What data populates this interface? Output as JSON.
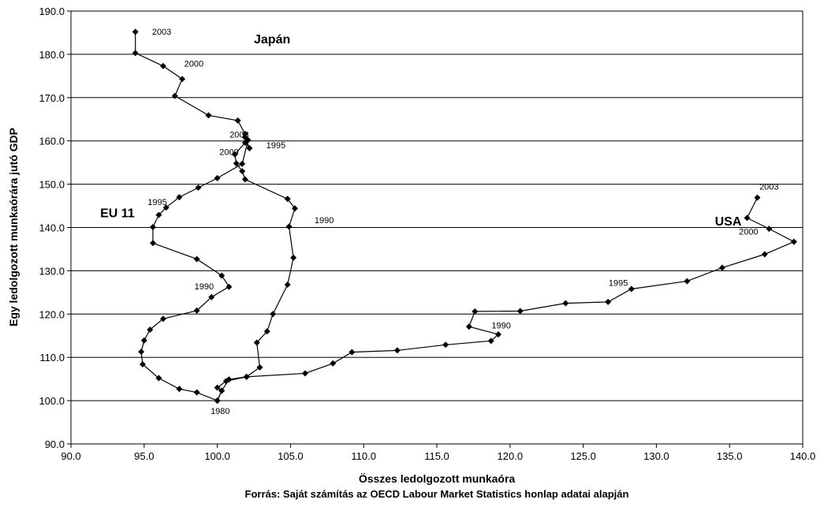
{
  "chart_data": {
    "type": "line",
    "xlabel": "Összes ledolgozott munkaóra",
    "ylabel": "Egy ledolgozott munkaórára jutó GDP",
    "caption": "Forrás: Saját számítás az OECD Labour Market Statistics honlap adatai alapján",
    "xlim": [
      90,
      140
    ],
    "ylim": [
      90,
      190
    ],
    "x_ticks": [
      "90.0",
      "95.0",
      "100.0",
      "105.0",
      "110.0",
      "115.0",
      "120.0",
      "125.0",
      "130.0",
      "135.0",
      "140.0"
    ],
    "y_ticks": [
      "90.0",
      "100.0",
      "110.0",
      "120.0",
      "130.0",
      "140.0",
      "150.0",
      "160.0",
      "170.0",
      "180.0",
      "190.0"
    ],
    "grid": "horizontal",
    "series": [
      {
        "label": "Japán",
        "label_anchor": [
          102.5,
          182.5
        ],
        "points": [
          [
            100.0,
            100.0
          ],
          [
            100.3,
            102.3
          ],
          [
            100.0,
            103.0
          ],
          [
            100.6,
            104.5
          ],
          [
            102.0,
            105.5
          ],
          [
            102.9,
            107.7
          ],
          [
            102.7,
            113.4
          ],
          [
            103.4,
            116.0
          ],
          [
            103.8,
            120.0
          ],
          [
            104.8,
            126.8
          ],
          [
            105.2,
            133.0
          ],
          [
            104.9,
            140.2
          ],
          [
            105.3,
            144.4
          ],
          [
            104.8,
            146.6
          ],
          [
            101.9,
            151.1
          ],
          [
            101.7,
            153.0
          ],
          [
            101.3,
            154.8
          ],
          [
            101.2,
            156.9
          ],
          [
            101.9,
            159.6
          ],
          [
            102.2,
            158.3
          ],
          [
            101.9,
            160.8
          ],
          [
            101.9,
            161.6
          ],
          [
            101.4,
            164.7
          ],
          [
            99.4,
            165.9
          ],
          [
            97.1,
            170.4
          ],
          [
            97.6,
            174.3
          ],
          [
            96.3,
            177.3
          ],
          [
            94.4,
            180.3
          ],
          [
            94.4,
            185.2
          ]
        ]
      },
      {
        "label": "EU 11",
        "label_anchor": [
          92.0,
          142.4
        ],
        "points": [
          [
            100.0,
            100.0
          ],
          [
            98.6,
            101.9
          ],
          [
            97.4,
            102.7
          ],
          [
            96.0,
            105.2
          ],
          [
            94.9,
            108.4
          ],
          [
            94.8,
            111.3
          ],
          [
            95.0,
            113.9
          ],
          [
            95.4,
            116.4
          ],
          [
            96.3,
            118.9
          ],
          [
            98.6,
            120.8
          ],
          [
            99.6,
            123.9
          ],
          [
            100.8,
            126.3
          ],
          [
            100.3,
            128.9
          ],
          [
            98.6,
            132.7
          ],
          [
            95.6,
            136.4
          ],
          [
            95.6,
            140.1
          ],
          [
            96.0,
            142.9
          ],
          [
            96.5,
            144.6
          ],
          [
            97.4,
            147.0
          ],
          [
            98.7,
            149.2
          ],
          [
            100.0,
            151.4
          ],
          [
            101.7,
            154.7
          ],
          [
            102.1,
            160.2
          ]
        ]
      },
      {
        "label": "USA",
        "label_anchor": [
          134.0,
          140.5
        ],
        "points": [
          [
            100.0,
            100.0
          ],
          [
            100.3,
            102.3
          ],
          [
            100.8,
            104.9
          ],
          [
            102.0,
            105.5
          ],
          [
            106.0,
            106.3
          ],
          [
            107.9,
            108.6
          ],
          [
            109.2,
            111.2
          ],
          [
            112.3,
            111.6
          ],
          [
            115.6,
            112.9
          ],
          [
            118.7,
            113.8
          ],
          [
            119.2,
            115.3
          ],
          [
            117.2,
            117.1
          ],
          [
            117.6,
            120.6
          ],
          [
            120.7,
            120.7
          ],
          [
            123.8,
            122.5
          ],
          [
            126.7,
            122.8
          ],
          [
            128.3,
            125.8
          ],
          [
            132.1,
            127.6
          ],
          [
            134.5,
            130.7
          ],
          [
            137.4,
            133.8
          ],
          [
            139.4,
            136.7
          ],
          [
            137.7,
            139.7
          ],
          [
            136.2,
            142.2
          ],
          [
            136.9,
            146.9
          ]
        ]
      }
    ],
    "annotations": [
      {
        "text": "2003",
        "x": 96.2,
        "y": 184.5
      },
      {
        "text": "2000",
        "x": 98.4,
        "y": 177.2
      },
      {
        "text": "2003",
        "x": 101.5,
        "y": 160.8
      },
      {
        "text": "1995",
        "x": 104.0,
        "y": 158.3
      },
      {
        "text": "2000",
        "x": 100.8,
        "y": 156.8
      },
      {
        "text": "1995",
        "x": 95.9,
        "y": 145.2
      },
      {
        "text": "1990",
        "x": 107.3,
        "y": 141.0
      },
      {
        "text": "1990",
        "x": 99.1,
        "y": 125.7
      },
      {
        "text": "1980",
        "x": 100.2,
        "y": 96.9
      },
      {
        "text": "2003",
        "x": 137.7,
        "y": 148.7
      },
      {
        "text": "2000",
        "x": 136.3,
        "y": 138.4
      },
      {
        "text": "1995",
        "x": 127.4,
        "y": 126.5
      },
      {
        "text": "1990",
        "x": 119.4,
        "y": 116.7
      }
    ]
  }
}
